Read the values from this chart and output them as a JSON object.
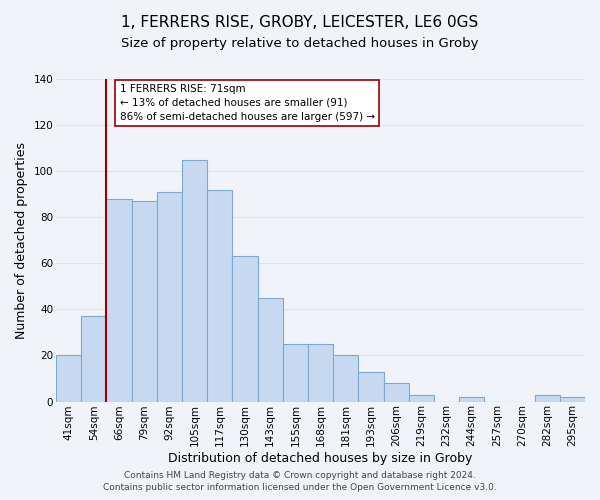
{
  "title": "1, FERRERS RISE, GROBY, LEICESTER, LE6 0GS",
  "subtitle": "Size of property relative to detached houses in Groby",
  "xlabel": "Distribution of detached houses by size in Groby",
  "ylabel": "Number of detached properties",
  "bar_labels": [
    "41sqm",
    "54sqm",
    "66sqm",
    "79sqm",
    "92sqm",
    "105sqm",
    "117sqm",
    "130sqm",
    "143sqm",
    "155sqm",
    "168sqm",
    "181sqm",
    "193sqm",
    "206sqm",
    "219sqm",
    "232sqm",
    "244sqm",
    "257sqm",
    "270sqm",
    "282sqm",
    "295sqm"
  ],
  "bar_values": [
    20,
    37,
    88,
    87,
    91,
    105,
    92,
    63,
    45,
    25,
    25,
    20,
    13,
    8,
    3,
    0,
    2,
    0,
    0,
    3,
    2
  ],
  "bar_color": "#c6d9f0",
  "bar_edge_color": "#7fa8d1",
  "vline_x_index": 2,
  "vline_color": "#990000",
  "ylim": [
    0,
    140
  ],
  "yticks": [
    0,
    20,
    40,
    60,
    80,
    100,
    120,
    140
  ],
  "annotation_lines": [
    "1 FERRERS RISE: 71sqm",
    "← 13% of detached houses are smaller (91)",
    "86% of semi-detached houses are larger (597) →"
  ],
  "footer_line1": "Contains HM Land Registry data © Crown copyright and database right 2024.",
  "footer_line2": "Contains public sector information licensed under the Open Government Licence v3.0.",
  "background_color": "#f0f4fa",
  "grid_color": "#d8e4f0",
  "title_fontsize": 11,
  "subtitle_fontsize": 9.5,
  "axis_label_fontsize": 9,
  "tick_fontsize": 7.5,
  "footer_fontsize": 6.5
}
